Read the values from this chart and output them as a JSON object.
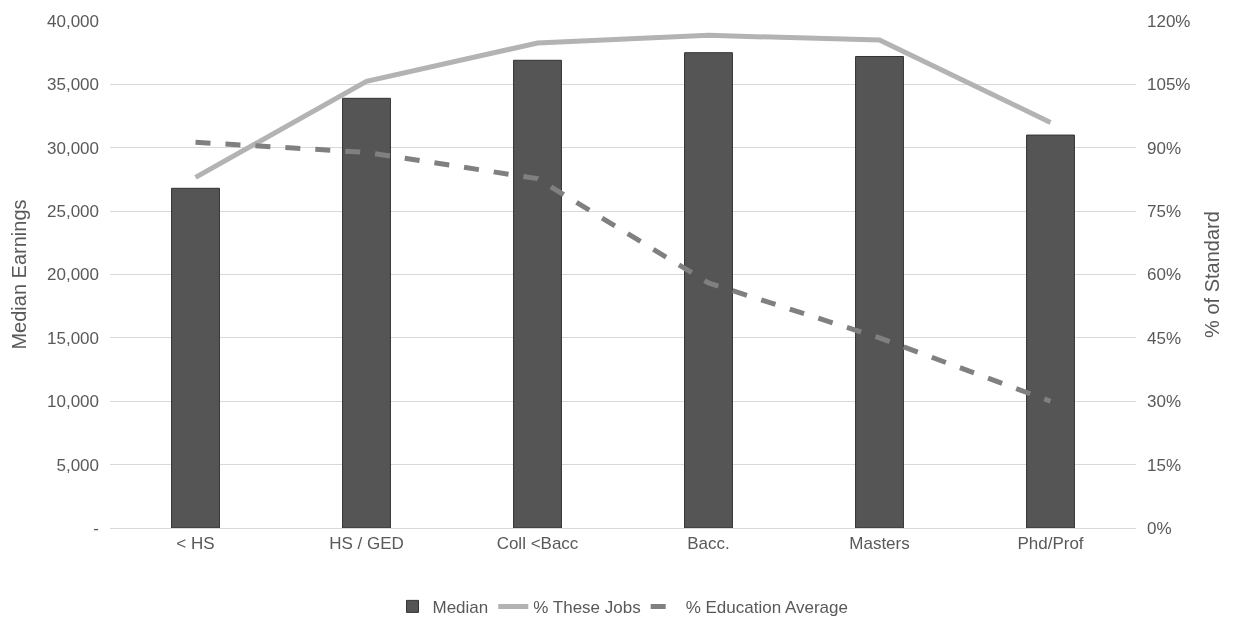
{
  "chart_data": {
    "type": "bar",
    "ylabel": "Median Earnings",
    "y2label": "% of Standard",
    "categories": [
      "< HS",
      "HS / GED",
      "Coll <Bacc",
      "Bacc.",
      "Masters",
      "Phd/Prof"
    ],
    "series": [
      {
        "name": "Median",
        "color": "#555555",
        "values": [
          26800,
          33900,
          36900,
          37500,
          37200,
          31000
        ]
      },
      {
        "name": "% These Jobs",
        "color": "#b3b3b3",
        "type": "line",
        "axis": "y2",
        "line_style": "solid",
        "values": [
          83,
          105.7,
          114.8,
          116.6,
          115.5,
          96
        ]
      },
      {
        "name": "% Education Average",
        "color": "#808080",
        "type": "line",
        "axis": "y2",
        "line_style": "dashed",
        "values": [
          91.3,
          88.9,
          82.7,
          58,
          45,
          30
        ]
      }
    ],
    "ylim": [
      0,
      40000
    ],
    "yticks": [
      {
        "value": 0,
        "label": "-"
      },
      {
        "value": 5000,
        "label": "5,000"
      },
      {
        "value": 10000,
        "label": "10,000"
      },
      {
        "value": 15000,
        "label": "15,000"
      },
      {
        "value": 20000,
        "label": "20,000"
      },
      {
        "value": 25000,
        "label": "25,000"
      },
      {
        "value": 30000,
        "label": "30,000"
      },
      {
        "value": 35000,
        "label": "35,000"
      },
      {
        "value": 40000,
        "label": "40,000"
      }
    ],
    "y2lim": [
      0,
      120
    ],
    "y2ticks": [
      {
        "value": 0,
        "label": "0%"
      },
      {
        "value": 15,
        "label": "15%"
      },
      {
        "value": 30,
        "label": "30%"
      },
      {
        "value": 45,
        "label": "45%"
      },
      {
        "value": 60,
        "label": "60%"
      },
      {
        "value": 75,
        "label": "75%"
      },
      {
        "value": 90,
        "label": "90%"
      },
      {
        "value": 105,
        "label": "105%"
      },
      {
        "value": 120,
        "label": "120%"
      }
    ],
    "grid": "y",
    "legend": "bottom",
    "marker": "none"
  }
}
